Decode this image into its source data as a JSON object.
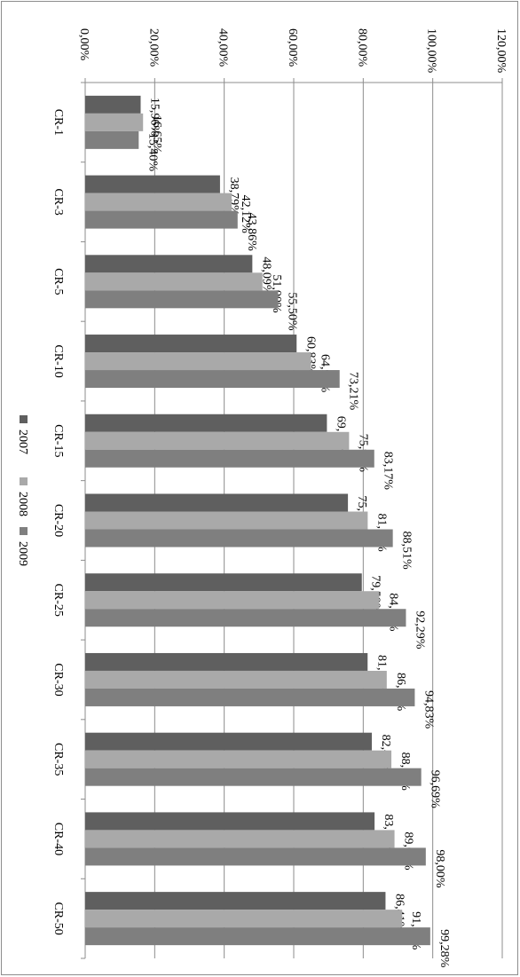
{
  "chart_data": {
    "type": "bar",
    "orientation": "horizontal",
    "rotation": "90-degrees-clockwise",
    "categories": [
      "CR-1",
      "CR-3",
      "CR-5",
      "CR-10",
      "CR-15",
      "CR-20",
      "CR-25",
      "CR-30",
      "CR-35",
      "CR-40",
      "CR-50"
    ],
    "series": [
      {
        "name": "2007",
        "color": "#5f5f5f",
        "values": [
          15.96,
          38.79,
          48.09,
          60.83,
          69.55,
          75.6,
          79.59,
          81.26,
          82.47,
          83.26,
          86.41
        ],
        "labels": [
          "15,96%",
          "38,79%",
          "48,09%",
          "60,83%",
          "69,55%",
          "75,60%",
          "79,59%",
          "81,26%",
          "82,47%",
          "83,26%",
          "86,41%"
        ]
      },
      {
        "name": "2008",
        "color": "#a9a9a9",
        "values": [
          16.65,
          42.12,
          51.0,
          64.99,
          75.93,
          81.29,
          84.58,
          86.77,
          88.1,
          89.0,
          91.2
        ],
        "labels": [
          "16,65%",
          "42,12%",
          "51,00%",
          "64,99%",
          "75,93%",
          "81,29%",
          "84,58%",
          "86,77%",
          "88,10%",
          "89,00%",
          "91,20%"
        ]
      },
      {
        "name": "2009",
        "color": "#7f7f7f",
        "values": [
          15.4,
          43.86,
          55.5,
          73.21,
          83.17,
          88.51,
          92.29,
          94.83,
          96.69,
          98.0,
          99.28
        ],
        "labels": [
          "15,40%",
          "43,86%",
          "55,50%",
          "73,21%",
          "83,17%",
          "88,51%",
          "92,29%",
          "94,83%",
          "96,69%",
          "98,00%",
          "99,28%"
        ]
      }
    ],
    "xlim": [
      0,
      120
    ],
    "ticks": [
      0,
      20,
      40,
      60,
      80,
      100,
      120
    ],
    "tick_labels": [
      "0,00%",
      "20,00%",
      "40,00%",
      "60,00%",
      "80,00%",
      "100,00%",
      "120,00%"
    ],
    "grid": true,
    "legend": {
      "position": "left",
      "entries": [
        "2007",
        "2008",
        "2009"
      ]
    }
  }
}
